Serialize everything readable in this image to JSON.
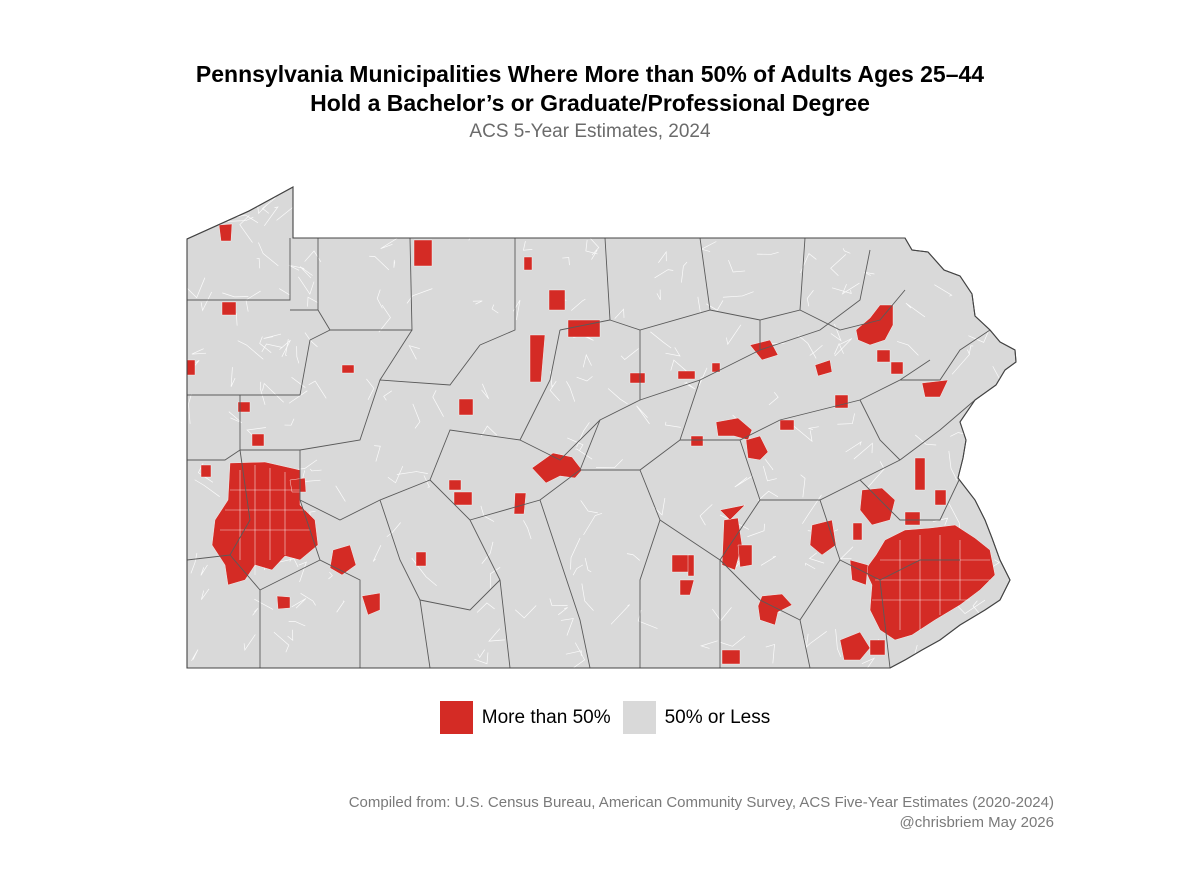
{
  "title": {
    "line1": "Pennsylvania Municipalities Where More than 50% of Adults Ages 25–44",
    "line2": "Hold a Bachelor’s or Graduate/Professional Degree"
  },
  "subtitle": "ACS 5-Year Estimates, 2024",
  "colors": {
    "highlight": "#d42b25",
    "base": "#d9d9d9",
    "county_border": "#555555",
    "municipal_border": "#ffffff"
  },
  "legend": {
    "items": [
      {
        "label": "More than 50%",
        "color": "#d42b25"
      },
      {
        "label": "50% or Less",
        "color": "#d9d9d9"
      }
    ]
  },
  "caption": {
    "line1": "Compiled from: U.S. Census Bureau, American Community Survey, ACS Five-Year Estimates (2020-2024)",
    "line2": "@chrisbriem  May 2026"
  }
}
